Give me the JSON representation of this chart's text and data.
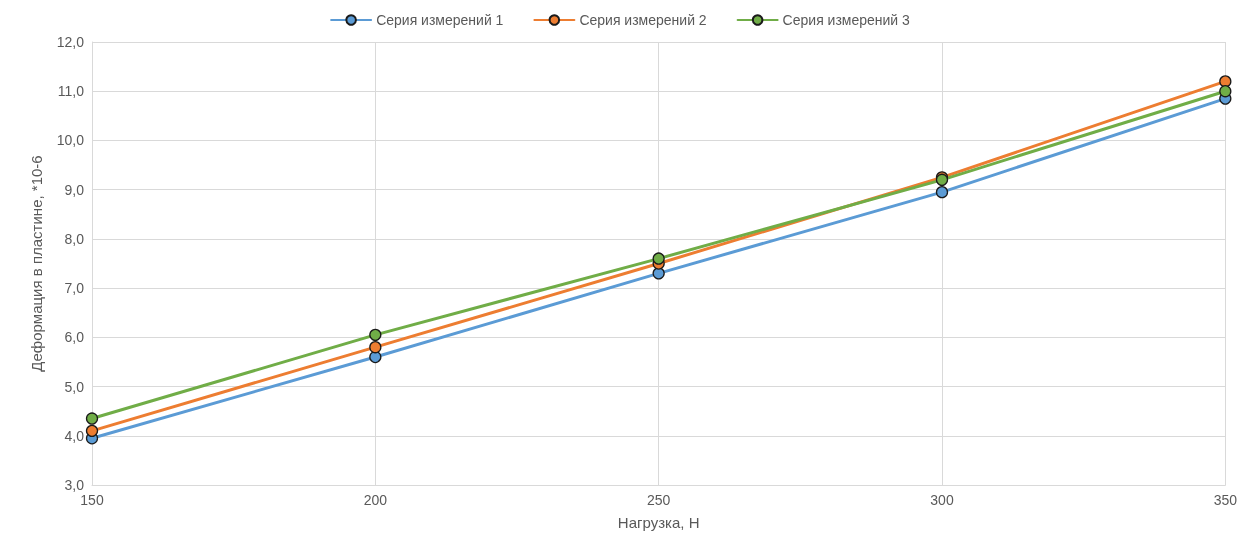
{
  "chart_data": {
    "type": "line",
    "xlabel": "Нагрузка, Н",
    "ylabel": "Деформация в пластине, *10-6",
    "x": [
      150,
      200,
      250,
      300,
      350
    ],
    "series": [
      {
        "name": "Серия измерений 1",
        "color": "#5b9bd5",
        "values": [
          3.95,
          5.6,
          7.3,
          8.95,
          10.85
        ]
      },
      {
        "name": "Серия измерений 2",
        "color": "#ed7d31",
        "values": [
          4.1,
          5.8,
          7.5,
          9.25,
          11.2
        ]
      },
      {
        "name": "Серия измерений 3",
        "color": "#70ad47",
        "values": [
          4.35,
          6.05,
          7.6,
          9.2,
          11.0
        ]
      }
    ],
    "xlim": [
      150,
      350
    ],
    "xticks": [
      150,
      200,
      250,
      300,
      350
    ],
    "ylim": [
      3,
      12
    ],
    "yticks": [
      {
        "value": 3,
        "label": "3,0"
      },
      {
        "value": 4,
        "label": "4,0"
      },
      {
        "value": 5,
        "label": "5,0"
      },
      {
        "value": 6,
        "label": "6,0"
      },
      {
        "value": 7,
        "label": "7,0"
      },
      {
        "value": 8,
        "label": "8,0"
      },
      {
        "value": 9,
        "label": "9,0"
      },
      {
        "value": 10,
        "label": "10,0"
      },
      {
        "value": 11,
        "label": "11,0"
      },
      {
        "value": 12,
        "label": "12,0"
      }
    ],
    "grid": true,
    "legend": "top",
    "marker": "circle",
    "line_style": "solid"
  }
}
